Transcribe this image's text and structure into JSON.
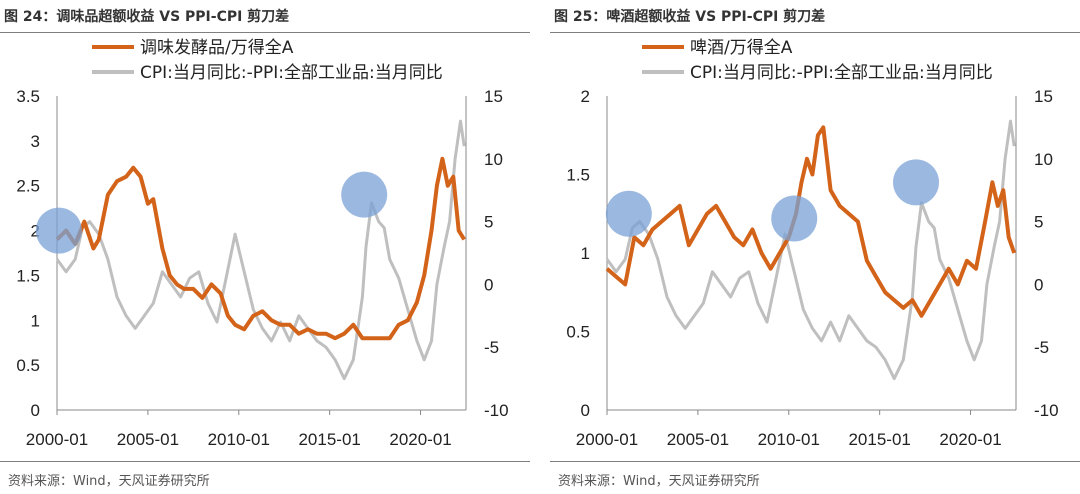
{
  "charts": [
    {
      "title": "图 24：调味品超额收益 VS PPI-CPI 剪刀差",
      "source": "资料来源：Wind，天风证券研究所",
      "legend": [
        "调味发酵品/万得全A",
        "CPI:当月同比:-PPI:全部工业品:当月同比"
      ],
      "left_ticks": [
        "3.5",
        "3",
        "2.5",
        "2",
        "1.5",
        "1",
        "0.5",
        "0"
      ],
      "right_ticks": [
        "15",
        "10",
        "5",
        "0",
        "-5",
        "-10"
      ],
      "x_ticks": [
        "2000-01",
        "2005-01",
        "2010-01",
        "2015-01",
        "2020-01"
      ]
    },
    {
      "title": "图 25：啤酒超额收益 VS PPI-CPI 剪刀差",
      "source": "资料来源：Wind，天风证券研究所",
      "legend": [
        "啤酒/万得全A",
        "CPI:当月同比:-PPI:全部工业品:当月同比"
      ],
      "left_ticks": [
        "2",
        "1.5",
        "1",
        "0.5",
        "0"
      ],
      "right_ticks": [
        "15",
        "10",
        "5",
        "0",
        "-5",
        "-10"
      ],
      "x_ticks": [
        "2000-01",
        "2005-01",
        "2010-01",
        "2015-01",
        "2020-01"
      ]
    }
  ],
  "chart_data": [
    {
      "type": "line",
      "colors": {
        "ratio": "#d4631a",
        "spread": "#bfbfbf",
        "highlight": "#7aa2d6"
      },
      "x_range": [
        2000.0,
        2022.5
      ],
      "y_left_range": [
        0,
        3.5
      ],
      "y_right_range": [
        -10,
        15
      ],
      "series": [
        {
          "name": "调味发酵品/万得全A",
          "axis": "left",
          "points": [
            [
              2000.0,
              1.9
            ],
            [
              2000.5,
              2.0
            ],
            [
              2001.0,
              1.85
            ],
            [
              2001.5,
              2.1
            ],
            [
              2002.0,
              1.8
            ],
            [
              2002.3,
              1.9
            ],
            [
              2002.8,
              2.4
            ],
            [
              2003.3,
              2.55
            ],
            [
              2003.8,
              2.6
            ],
            [
              2004.2,
              2.7
            ],
            [
              2004.6,
              2.6
            ],
            [
              2005.0,
              2.3
            ],
            [
              2005.3,
              2.35
            ],
            [
              2005.8,
              1.8
            ],
            [
              2006.2,
              1.5
            ],
            [
              2006.6,
              1.4
            ],
            [
              2007.0,
              1.35
            ],
            [
              2007.5,
              1.35
            ],
            [
              2008.0,
              1.25
            ],
            [
              2008.5,
              1.4
            ],
            [
              2009.0,
              1.3
            ],
            [
              2009.4,
              1.05
            ],
            [
              2009.8,
              0.95
            ],
            [
              2010.3,
              0.9
            ],
            [
              2010.8,
              1.05
            ],
            [
              2011.3,
              1.1
            ],
            [
              2011.8,
              1.0
            ],
            [
              2012.3,
              0.95
            ],
            [
              2012.8,
              0.95
            ],
            [
              2013.3,
              0.85
            ],
            [
              2013.8,
              0.9
            ],
            [
              2014.3,
              0.85
            ],
            [
              2014.8,
              0.85
            ],
            [
              2015.3,
              0.8
            ],
            [
              2015.8,
              0.85
            ],
            [
              2016.3,
              0.95
            ],
            [
              2016.8,
              0.8
            ],
            [
              2017.3,
              0.8
            ],
            [
              2017.8,
              0.8
            ],
            [
              2018.3,
              0.8
            ],
            [
              2018.8,
              0.95
            ],
            [
              2019.3,
              1.0
            ],
            [
              2019.8,
              1.2
            ],
            [
              2020.2,
              1.5
            ],
            [
              2020.6,
              2.0
            ],
            [
              2020.9,
              2.5
            ],
            [
              2021.2,
              2.8
            ],
            [
              2021.5,
              2.5
            ],
            [
              2021.8,
              2.6
            ],
            [
              2022.1,
              2.0
            ],
            [
              2022.4,
              1.9
            ]
          ]
        },
        {
          "name": "CPI:当月同比:-PPI:全部工业品:当月同比",
          "axis": "right",
          "points": [
            [
              2000.0,
              2.0
            ],
            [
              2000.5,
              1.0
            ],
            [
              2001.0,
              2.0
            ],
            [
              2001.4,
              4.5
            ],
            [
              2001.8,
              5.0
            ],
            [
              2002.3,
              4.0
            ],
            [
              2002.8,
              2.0
            ],
            [
              2003.3,
              -1.0
            ],
            [
              2003.8,
              -2.5
            ],
            [
              2004.3,
              -3.5
            ],
            [
              2004.8,
              -2.5
            ],
            [
              2005.3,
              -1.5
            ],
            [
              2005.8,
              1.0
            ],
            [
              2006.3,
              0.0
            ],
            [
              2006.8,
              -1.0
            ],
            [
              2007.3,
              0.5
            ],
            [
              2007.8,
              1.0
            ],
            [
              2008.3,
              -1.5
            ],
            [
              2008.8,
              -3.0
            ],
            [
              2009.3,
              0.5
            ],
            [
              2009.8,
              4.0
            ],
            [
              2010.3,
              1.0
            ],
            [
              2010.8,
              -2.0
            ],
            [
              2011.3,
              -3.5
            ],
            [
              2011.8,
              -4.5
            ],
            [
              2012.3,
              -3.0
            ],
            [
              2012.8,
              -4.5
            ],
            [
              2013.3,
              -2.5
            ],
            [
              2013.8,
              -3.5
            ],
            [
              2014.3,
              -4.5
            ],
            [
              2014.8,
              -5.0
            ],
            [
              2015.3,
              -6.0
            ],
            [
              2015.8,
              -7.5
            ],
            [
              2016.3,
              -6.0
            ],
            [
              2016.8,
              -1.0
            ],
            [
              2017.0,
              3.0
            ],
            [
              2017.3,
              6.5
            ],
            [
              2017.7,
              5.0
            ],
            [
              2018.0,
              4.5
            ],
            [
              2018.3,
              2.0
            ],
            [
              2018.8,
              0.5
            ],
            [
              2019.3,
              -2.0
            ],
            [
              2019.8,
              -4.5
            ],
            [
              2020.2,
              -6.0
            ],
            [
              2020.6,
              -4.5
            ],
            [
              2020.9,
              0.0
            ],
            [
              2021.3,
              3.0
            ],
            [
              2021.6,
              5.0
            ],
            [
              2021.9,
              10.0
            ],
            [
              2022.2,
              13.0
            ],
            [
              2022.4,
              11.0
            ]
          ]
        }
      ],
      "highlights": [
        [
          2000.1,
          2.0
        ],
        [
          2016.9,
          2.4
        ]
      ]
    },
    {
      "type": "line",
      "colors": {
        "ratio": "#d4631a",
        "spread": "#bfbfbf",
        "highlight": "#7aa2d6"
      },
      "x_range": [
        2000.0,
        2022.5
      ],
      "y_left_range": [
        0,
        2
      ],
      "y_right_range": [
        -10,
        15
      ],
      "series": [
        {
          "name": "啤酒/万得全A",
          "axis": "left",
          "points": [
            [
              2000.0,
              0.9
            ],
            [
              2000.5,
              0.85
            ],
            [
              2001.0,
              0.8
            ],
            [
              2001.5,
              1.1
            ],
            [
              2002.0,
              1.05
            ],
            [
              2002.5,
              1.15
            ],
            [
              2003.0,
              1.2
            ],
            [
              2003.5,
              1.25
            ],
            [
              2004.0,
              1.3
            ],
            [
              2004.5,
              1.05
            ],
            [
              2005.0,
              1.15
            ],
            [
              2005.5,
              1.25
            ],
            [
              2006.0,
              1.3
            ],
            [
              2006.5,
              1.2
            ],
            [
              2007.0,
              1.1
            ],
            [
              2007.5,
              1.05
            ],
            [
              2008.0,
              1.15
            ],
            [
              2008.5,
              1.0
            ],
            [
              2009.0,
              0.9
            ],
            [
              2009.5,
              1.0
            ],
            [
              2010.0,
              1.1
            ],
            [
              2010.4,
              1.25
            ],
            [
              2010.7,
              1.45
            ],
            [
              2011.0,
              1.6
            ],
            [
              2011.3,
              1.5
            ],
            [
              2011.6,
              1.75
            ],
            [
              2011.9,
              1.8
            ],
            [
              2012.3,
              1.4
            ],
            [
              2012.8,
              1.3
            ],
            [
              2013.3,
              1.25
            ],
            [
              2013.8,
              1.2
            ],
            [
              2014.3,
              0.95
            ],
            [
              2014.8,
              0.85
            ],
            [
              2015.3,
              0.75
            ],
            [
              2015.8,
              0.7
            ],
            [
              2016.3,
              0.65
            ],
            [
              2016.8,
              0.7
            ],
            [
              2017.3,
              0.6
            ],
            [
              2017.8,
              0.7
            ],
            [
              2018.3,
              0.8
            ],
            [
              2018.8,
              0.9
            ],
            [
              2019.3,
              0.8
            ],
            [
              2019.8,
              0.95
            ],
            [
              2020.3,
              0.9
            ],
            [
              2020.8,
              1.2
            ],
            [
              2021.2,
              1.45
            ],
            [
              2021.5,
              1.3
            ],
            [
              2021.8,
              1.4
            ],
            [
              2022.1,
              1.1
            ],
            [
              2022.4,
              1.0
            ]
          ]
        },
        {
          "name": "CPI:当月同比:-PPI:全部工业品:当月同比",
          "axis": "right",
          "points": [
            [
              2000.0,
              2.0
            ],
            [
              2000.5,
              1.0
            ],
            [
              2001.0,
              2.0
            ],
            [
              2001.4,
              4.5
            ],
            [
              2001.8,
              5.0
            ],
            [
              2002.3,
              4.0
            ],
            [
              2002.8,
              2.0
            ],
            [
              2003.3,
              -1.0
            ],
            [
              2003.8,
              -2.5
            ],
            [
              2004.3,
              -3.5
            ],
            [
              2004.8,
              -2.5
            ],
            [
              2005.3,
              -1.5
            ],
            [
              2005.8,
              1.0
            ],
            [
              2006.3,
              0.0
            ],
            [
              2006.8,
              -1.0
            ],
            [
              2007.3,
              0.5
            ],
            [
              2007.8,
              1.0
            ],
            [
              2008.3,
              -1.5
            ],
            [
              2008.8,
              -3.0
            ],
            [
              2009.3,
              0.5
            ],
            [
              2009.8,
              4.0
            ],
            [
              2010.3,
              1.0
            ],
            [
              2010.8,
              -2.0
            ],
            [
              2011.3,
              -3.5
            ],
            [
              2011.8,
              -4.5
            ],
            [
              2012.3,
              -3.0
            ],
            [
              2012.8,
              -4.5
            ],
            [
              2013.3,
              -2.5
            ],
            [
              2013.8,
              -3.5
            ],
            [
              2014.3,
              -4.5
            ],
            [
              2014.8,
              -5.0
            ],
            [
              2015.3,
              -6.0
            ],
            [
              2015.8,
              -7.5
            ],
            [
              2016.3,
              -6.0
            ],
            [
              2016.8,
              -1.0
            ],
            [
              2017.0,
              3.0
            ],
            [
              2017.3,
              6.5
            ],
            [
              2017.7,
              5.0
            ],
            [
              2018.0,
              4.5
            ],
            [
              2018.3,
              2.0
            ],
            [
              2018.8,
              0.5
            ],
            [
              2019.3,
              -2.0
            ],
            [
              2019.8,
              -4.5
            ],
            [
              2020.2,
              -6.0
            ],
            [
              2020.6,
              -4.5
            ],
            [
              2020.9,
              0.0
            ],
            [
              2021.3,
              3.0
            ],
            [
              2021.6,
              5.0
            ],
            [
              2021.9,
              10.0
            ],
            [
              2022.2,
              13.0
            ],
            [
              2022.4,
              11.0
            ]
          ]
        }
      ],
      "highlights": [
        [
          2001.2,
          1.25
        ],
        [
          2010.3,
          1.22
        ],
        [
          2017.0,
          1.45
        ]
      ]
    }
  ]
}
